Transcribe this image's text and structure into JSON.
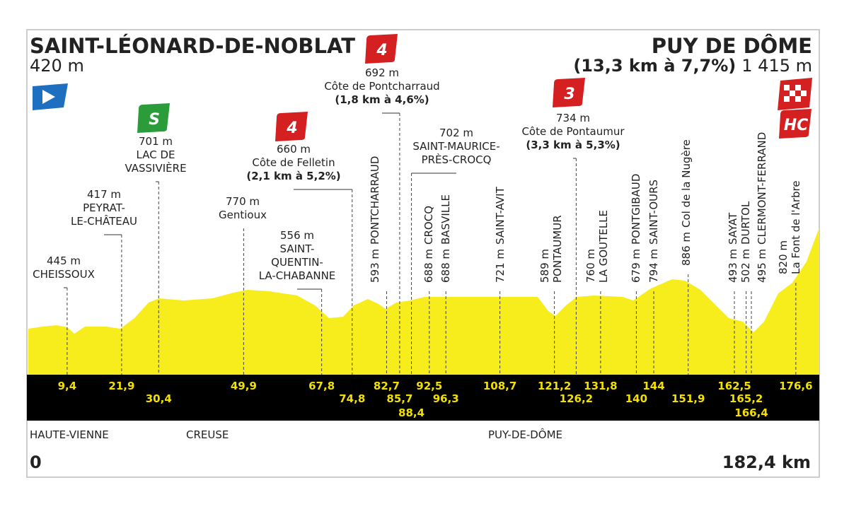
{
  "header": {
    "start": {
      "name": "SAINT-LÉONARD-DE-NOBLAT",
      "altitude": "420 m"
    },
    "finish": {
      "name": "PUY DE DÔME",
      "climb": "(13,3 km à 7,7%)",
      "altitude": "1 415 m",
      "category": "HC"
    }
  },
  "waypoints": [
    {
      "km": "9,4",
      "altitude": "445 m",
      "name": [
        "CHEISSOUX"
      ]
    },
    {
      "km": "21,9",
      "altitude": "417 m",
      "name": [
        "PEYRAT-",
        "LE-CHÂTEAU"
      ]
    },
    {
      "km": "30,4",
      "altitude": "701 m",
      "name": [
        "LAC DE",
        "VASSIVIÈRE"
      ],
      "category": "S"
    },
    {
      "km": "49,9",
      "altitude": "770 m",
      "name": [
        "Gentioux"
      ]
    },
    {
      "km": "67,8",
      "altitude": "556 m",
      "name": [
        "SAINT-",
        "QUENTIN-",
        "LA-CHABANNE"
      ]
    },
    {
      "km": "74,8",
      "altitude": "660 m",
      "name": [
        "Côte de Felletin"
      ],
      "climb": "(2,1 km à 5,2%)",
      "category": "4"
    },
    {
      "km": "82,7",
      "altitude": "593 m",
      "name": [
        "PONTCHARRAUD"
      ]
    },
    {
      "km": "85,7",
      "altitude": "692 m",
      "name": [
        "Côte de Pontcharraud"
      ],
      "climb": "(1,8 km à 4,6%)",
      "category": "4"
    },
    {
      "km": "88,4",
      "altitude": "702 m",
      "name": [
        "SAINT-MAURICE-",
        "PRÈS-CROCQ"
      ]
    },
    {
      "km": "92,5",
      "altitude": "688 m",
      "name": [
        "CROCQ"
      ]
    },
    {
      "km": "96,3",
      "altitude": "688 m",
      "name": [
        "BASVILLE"
      ]
    },
    {
      "km": "108,7",
      "altitude": "721 m",
      "name": [
        "SAINT-AVIT"
      ]
    },
    {
      "km": "121,2",
      "altitude": "589 m",
      "name": [
        "PONTAUMUR"
      ]
    },
    {
      "km": "126,2",
      "altitude": "734 m",
      "name": [
        "Côte de Pontaumur"
      ],
      "climb": "(3,3 km à 5,3%)",
      "category": "3"
    },
    {
      "km": "131,8",
      "altitude": "760 m",
      "name": [
        "LA GOUTELLE"
      ]
    },
    {
      "km": "140",
      "altitude": "679 m",
      "name": [
        "PONTGIBAUD"
      ]
    },
    {
      "km": "144",
      "altitude": "794 m",
      "name": [
        "SAINT-OURS"
      ]
    },
    {
      "km": "151,9",
      "altitude": "886 m",
      "name": [
        "Col de la Nugère"
      ]
    },
    {
      "km": "162,5",
      "altitude": "493 m",
      "name": [
        "SAYAT"
      ]
    },
    {
      "km": "165,2",
      "altitude": "502 m",
      "name": [
        "DURTOL"
      ]
    },
    {
      "km": "166,4",
      "altitude": "495 m",
      "name": [
        "CLERMONT-FERRAND"
      ]
    },
    {
      "km": "176,6",
      "altitude": "820 m",
      "name": [
        "La Font de l'Arbre"
      ]
    }
  ],
  "departments": [
    "HAUTE-VIENNE",
    "CREUSE",
    "PUY-DE-DÔME"
  ],
  "distance": {
    "start": "0",
    "end": "182,4 km"
  }
}
